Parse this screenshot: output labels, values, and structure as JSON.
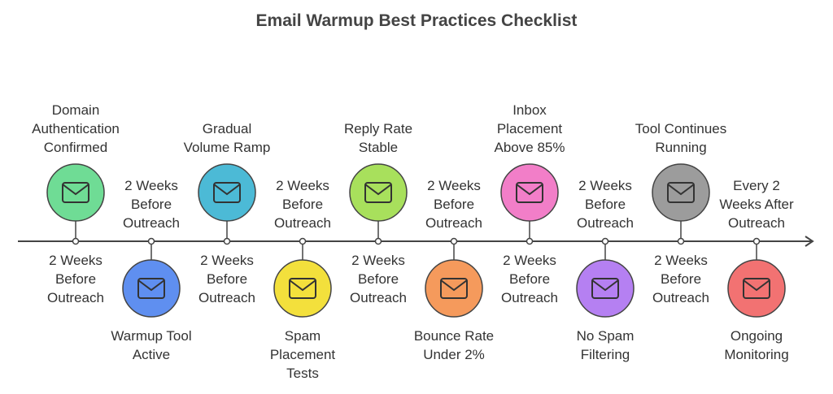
{
  "title": "Email Warmup Best Practices Checklist",
  "milestones": [
    {
      "label": "Domain Authentication Confirmed",
      "timing": "2 Weeks Before Outreach",
      "color": "#6fdc95"
    },
    {
      "label": "Warmup Tool Active",
      "timing": "2 Weeks Before Outreach",
      "color": "#5f8ff0"
    },
    {
      "label": "Gradual Volume Ramp",
      "timing": "2 Weeks Before Outreach",
      "color": "#4cbad6"
    },
    {
      "label": "Spam Placement Tests",
      "timing": "2 Weeks Before Outreach",
      "color": "#f3e03c"
    },
    {
      "label": "Reply Rate Stable",
      "timing": "2 Weeks Before Outreach",
      "color": "#a8e05c"
    },
    {
      "label": "Bounce Rate Under 2%",
      "timing": "2 Weeks Before Outreach",
      "color": "#f59a5c"
    },
    {
      "label": "Inbox Placement Above 85%",
      "timing": "2 Weeks Before Outreach",
      "color": "#f27ec8"
    },
    {
      "label": "No Spam Filtering",
      "timing": "2 Weeks Before Outreach",
      "color": "#b580f2"
    },
    {
      "label": "Tool Continues Running",
      "timing": "2 Weeks Before Outreach",
      "color": "#9c9c9c"
    },
    {
      "label": "Ongoing Monitoring",
      "timing": "Every 2 Weeks After Outreach",
      "color": "#f27272"
    }
  ]
}
